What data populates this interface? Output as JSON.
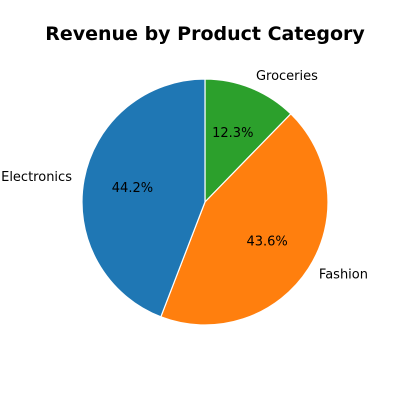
{
  "chart_data": {
    "type": "pie",
    "title": "Revenue by Product Category",
    "slices": [
      {
        "label": "Groceries",
        "percent": 12.3,
        "percent_label": "12.3%",
        "color": "#2ca02c"
      },
      {
        "label": "Fashion",
        "percent": 43.6,
        "percent_label": "43.6%",
        "color": "#ff7f0e"
      },
      {
        "label": "Electronics",
        "percent": 44.2,
        "percent_label": "44.2%",
        "color": "#1f77b4"
      }
    ],
    "start_angle": "12 o'clock",
    "direction": "clockwise",
    "legend": "none"
  }
}
